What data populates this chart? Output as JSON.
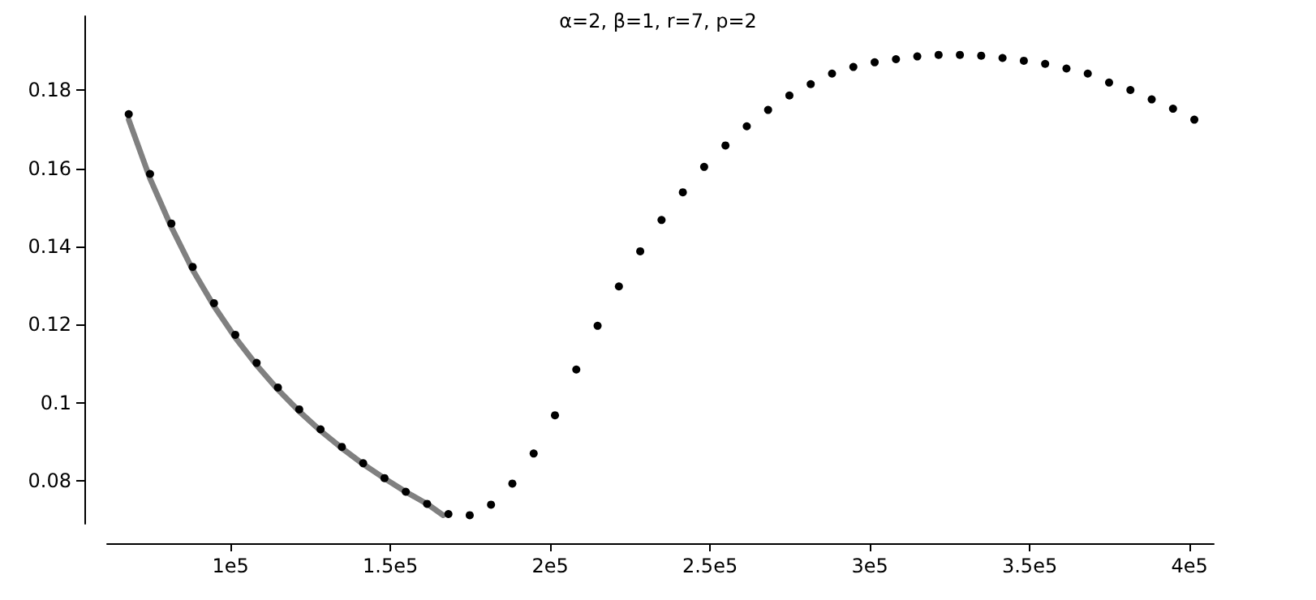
{
  "chart_data": {
    "type": "scatter",
    "title": "α=2, β=1, r=7, p=2",
    "xlim": [
      61400,
      407600
    ],
    "xticks": [
      {
        "value": 100000,
        "label": "1e5"
      },
      {
        "value": 150000,
        "label": "1.5e5"
      },
      {
        "value": 200000,
        "label": "2e5"
      },
      {
        "value": 250000,
        "label": "2.5e5"
      },
      {
        "value": 300000,
        "label": "3e5"
      },
      {
        "value": 350000,
        "label": "3.5e5"
      },
      {
        "value": 400000,
        "label": "4e5"
      }
    ],
    "ylim": [
      0.069,
      0.199
    ],
    "yticks": [
      0.08,
      0.1,
      0.12,
      0.14,
      0.16,
      0.18
    ],
    "grid": false,
    "series": [
      {
        "type": "line",
        "color": "#808080",
        "marker": "none",
        "x": [
          68170,
          74800,
          81500,
          88200,
          94800,
          101500,
          108200,
          114800,
          121500,
          128200,
          134800,
          141500,
          148200,
          154800,
          161500,
          166500
        ],
        "values": [
          0.1725,
          0.1575,
          0.145,
          0.134,
          0.1248,
          0.1167,
          0.1096,
          0.1034,
          0.0978,
          0.0928,
          0.0884,
          0.0843,
          0.0806,
          0.0772,
          0.0741,
          0.0712
        ]
      },
      {
        "color": "#000000",
        "marker": "circle",
        "x": [
          68170,
          74837,
          81504,
          88171,
          94838,
          101505,
          108172,
          114839,
          121506,
          128173,
          134840,
          141507,
          148174,
          154841,
          161508,
          168175,
          174842,
          181509,
          188176,
          194843,
          201510,
          208177,
          214844,
          221511,
          228178,
          234845,
          241512,
          248179,
          254846,
          261513,
          268180,
          274847,
          281514,
          288181,
          294848,
          301515,
          308182,
          314849,
          321516,
          328183,
          334850,
          341517,
          348184,
          354851,
          361518,
          368185,
          374852,
          381519,
          388186,
          394853,
          401520
        ],
        "values": [
          0.1739,
          0.1586,
          0.1459,
          0.1348,
          0.1255,
          0.1174,
          0.1102,
          0.1039,
          0.0983,
          0.0932,
          0.0887,
          0.0845,
          0.0807,
          0.0772,
          0.0741,
          0.0715,
          0.0712,
          0.0739,
          0.0793,
          0.087,
          0.0968,
          0.1085,
          0.1197,
          0.1298,
          0.1388,
          0.1468,
          0.1539,
          0.1604,
          0.1659,
          0.1708,
          0.175,
          0.1787,
          0.1816,
          0.1843,
          0.186,
          0.1872,
          0.188,
          0.1887,
          0.1891,
          0.1891,
          0.1889,
          0.1883,
          0.1876,
          0.1868,
          0.1856,
          0.1843,
          0.182,
          0.1801,
          0.1777,
          0.1753,
          0.1725
        ]
      }
    ]
  }
}
